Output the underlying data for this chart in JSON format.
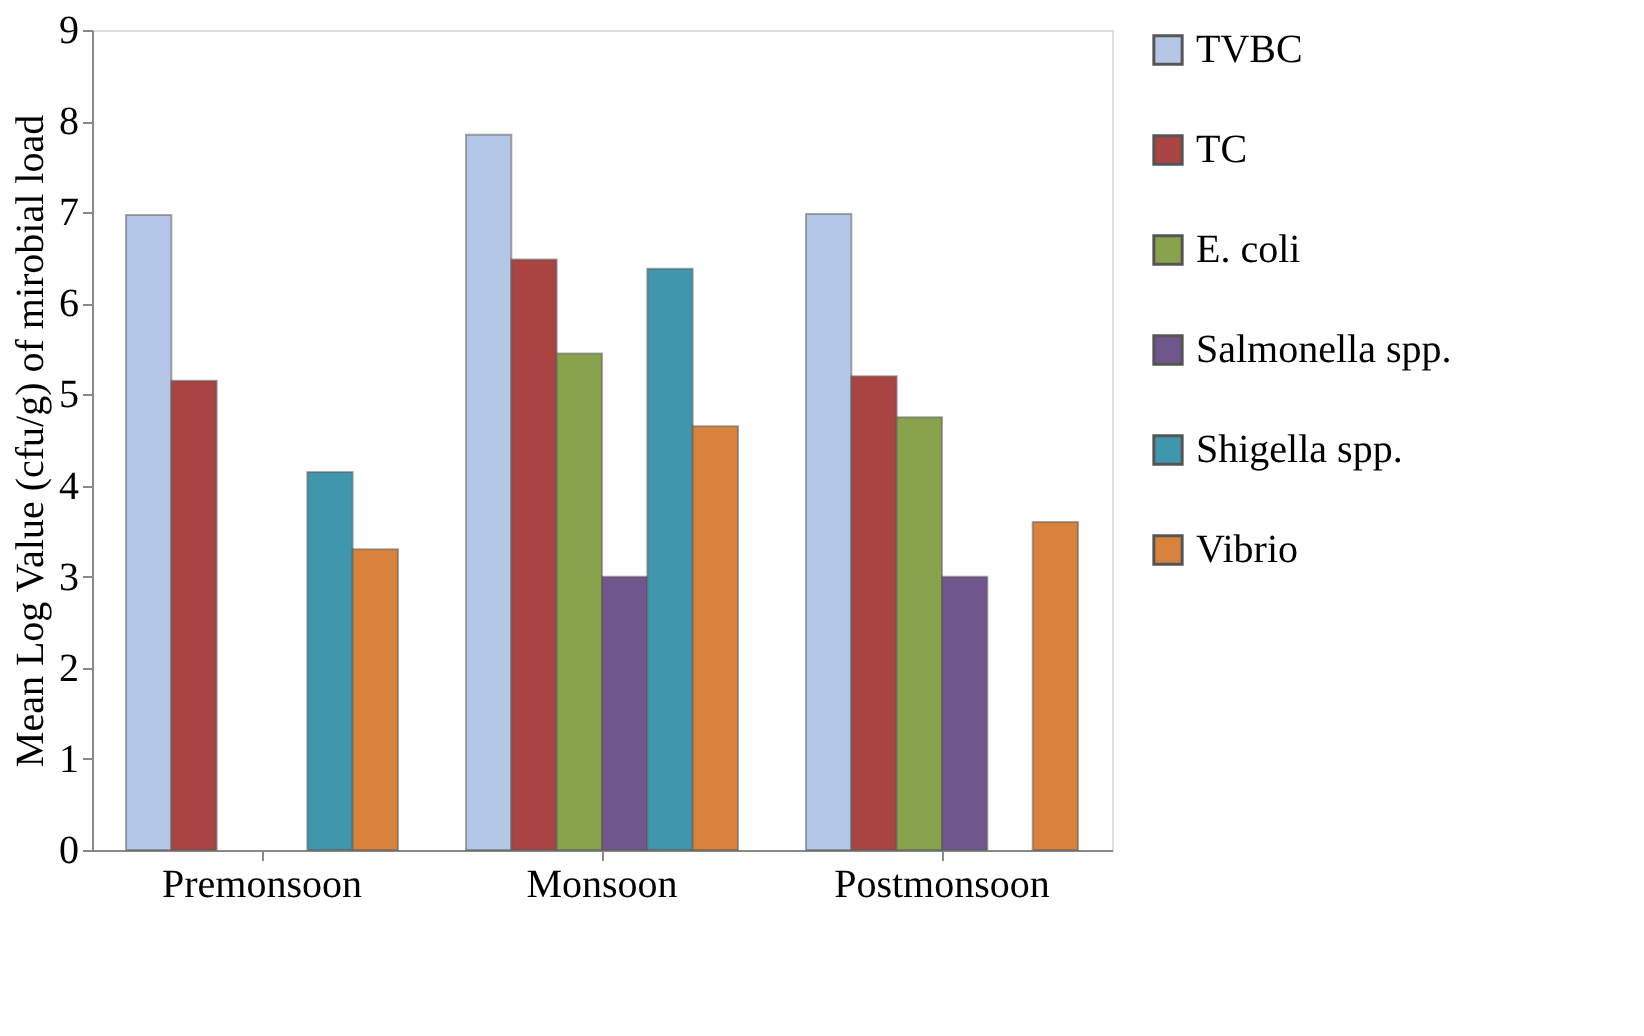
{
  "chart_data": {
    "type": "bar",
    "ylabel": "Mean Log Value (cfu/g) of mirobial load",
    "categories": [
      "Premonsoon",
      "Monsoon",
      "Postmonsoon"
    ],
    "series": [
      {
        "name": "TVBC",
        "color": "#b4c7e7",
        "values": [
          6.97,
          7.85,
          6.98
        ]
      },
      {
        "name": "TC",
        "color": "#a94442",
        "values": [
          5.15,
          6.48,
          5.2
        ]
      },
      {
        "name": "E. coli",
        "color": "#88a34c",
        "values": [
          null,
          5.45,
          4.75
        ]
      },
      {
        "name": "Salmonella spp.",
        "color": "#6f568c",
        "values": [
          null,
          3.0,
          3.0
        ]
      },
      {
        "name": "Shigella spp.",
        "color": "#4097ad",
        "values": [
          4.15,
          6.38,
          null
        ]
      },
      {
        "name": "Vibrio",
        "color": "#d9823c",
        "values": [
          3.3,
          4.65,
          3.6
        ]
      }
    ],
    "ylim": [
      0,
      9
    ],
    "yticks": [
      0,
      1,
      2,
      3,
      4,
      5,
      6,
      7,
      8,
      9
    ],
    "grid": false,
    "legend": "right"
  }
}
